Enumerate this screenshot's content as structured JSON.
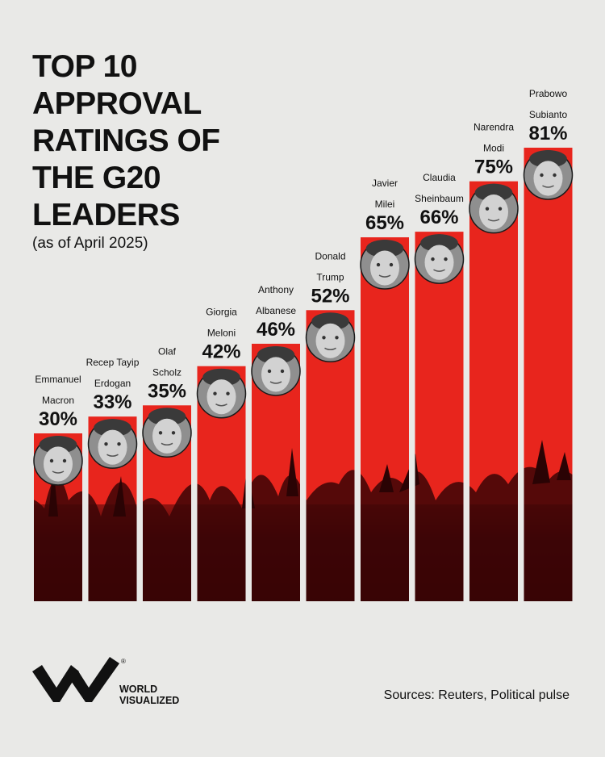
{
  "title": "TOP 10 APPROVAL RATINGS OF THE G20 LEADERS",
  "subtitle": "(as of April 2025)",
  "brand": {
    "line1": "WORLD",
    "line2": "VISUALIZED",
    "mark": "®"
  },
  "sources": "Sources: Reuters, Political pulse",
  "colors": {
    "bar": "#e8251d",
    "background": "#e9e9e7",
    "crowd": "#3b0506"
  },
  "chart_data": {
    "type": "bar",
    "title": "TOP 10 APPROVAL RATINGS OF THE G20 LEADERS",
    "subtitle": "(as of April 2025)",
    "categories": [
      [
        "Emmanuel",
        "Macron"
      ],
      [
        "Recep Tayip",
        "Erdogan"
      ],
      [
        "Olaf",
        "Scholz"
      ],
      [
        "Giorgia",
        "Meloni"
      ],
      [
        "Anthony",
        "Albanese"
      ],
      [
        "Donald",
        "Trump"
      ],
      [
        "Javier",
        "Milei"
      ],
      [
        "Claudia",
        "Sheinbaum"
      ],
      [
        "Narendra",
        "Modi"
      ],
      [
        "Prabowo",
        "Subianto"
      ]
    ],
    "values": [
      30,
      33,
      35,
      42,
      46,
      52,
      65,
      66,
      75,
      81
    ],
    "value_labels": [
      "30%",
      "33%",
      "35%",
      "42%",
      "46%",
      "52%",
      "65%",
      "66%",
      "75%",
      "81%"
    ],
    "unit": "%",
    "ylim": [
      0,
      100
    ],
    "grid": false,
    "legend": "none"
  }
}
